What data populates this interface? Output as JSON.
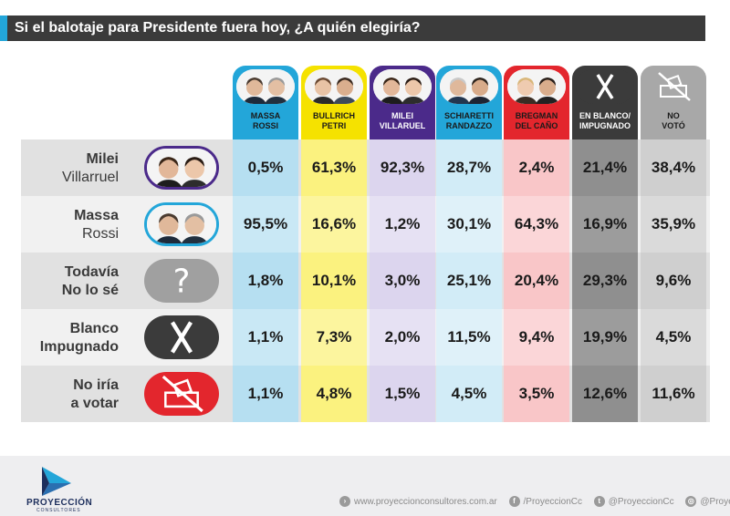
{
  "title": "Si el balotaje para Presidente fuera hoy, ¿A quién elegiría?",
  "colors": {
    "title_bg": "#3b3b3b",
    "accent": "#23a6d9",
    "massa": "#23a6d9",
    "bullrich": "#f5e200",
    "milei": "#4b2a8a",
    "schiaretti": "#23a6d9",
    "bregman": "#e3262d",
    "blanco": "#3b3b3b",
    "no_voto": "#a8a8a8"
  },
  "columns": [
    {
      "line1": "MASSA",
      "line2": "ROSSI",
      "icon": "massa-rossi-photo"
    },
    {
      "line1": "BULLRICH",
      "line2": "PETRI",
      "icon": "bullrich-petri-photo"
    },
    {
      "line1": "MILEI",
      "line2": "VILLARUEL",
      "icon": "milei-villarruel-photo"
    },
    {
      "line1": "SCHIARETTI",
      "line2": "RANDAZZO",
      "icon": "schiaretti-randazzo-photo"
    },
    {
      "line1": "BREGMAN",
      "line2": "DEL CAÑO",
      "icon": "bregman-delcano-photo"
    },
    {
      "line1": "EN BLANCO/",
      "line2": "IMPUGNADO",
      "icon": "x-icon"
    },
    {
      "line1": "NO",
      "line2": "VOTÓ",
      "icon": "no-vote-icon"
    }
  ],
  "rows": [
    {
      "line1": "Milei",
      "line2": "Villarruel",
      "icon": "milei-villarruel-photo",
      "values": [
        "0,5%",
        "61,3%",
        "92,3%",
        "28,7%",
        "2,4%",
        "21,4%",
        "38,4%"
      ]
    },
    {
      "line1": "Massa",
      "line2": "Rossi",
      "icon": "massa-rossi-photo",
      "values": [
        "95,5%",
        "16,6%",
        "1,2%",
        "30,1%",
        "64,3%",
        "16,9%",
        "35,9%"
      ]
    },
    {
      "line1": "Todavía",
      "line2": "No lo sé",
      "icon": "question-icon",
      "values": [
        "1,8%",
        "10,1%",
        "3,0%",
        "25,1%",
        "20,4%",
        "29,3%",
        "9,6%"
      ]
    },
    {
      "line1": "Blanco",
      "line2": "Impugnado",
      "icon": "x-icon",
      "values": [
        "1,1%",
        "7,3%",
        "2,0%",
        "11,5%",
        "9,4%",
        "19,9%",
        "4,5%"
      ]
    },
    {
      "line1": "No iría",
      "line2": "a votar",
      "icon": "no-vote-icon",
      "values": [
        "1,1%",
        "4,8%",
        "1,5%",
        "4,5%",
        "3,5%",
        "12,6%",
        "11,6%"
      ]
    }
  ],
  "footer": {
    "brand": "PROYECCIÓN",
    "brand_sub": "CONSULTORES",
    "website": "www.proyeccionconsultores.com.ar",
    "facebook": "/ProyeccionCc",
    "twitter": "@ProyeccionCc",
    "instagram": "@ProyeccionCc"
  },
  "chart_data": {
    "type": "table",
    "title": "Si el balotaje para Presidente fuera hoy, ¿A quién elegiría?",
    "column_headers": [
      "MASSA ROSSI",
      "BULLRICH PETRI",
      "MILEI VILLARUEL",
      "SCHIARETTI RANDAZZO",
      "BREGMAN DEL CAÑO",
      "EN BLANCO/ IMPUGNADO",
      "NO VOTÓ"
    ],
    "row_headers": [
      "Milei Villarruel",
      "Massa Rossi",
      "Todavía No lo sé",
      "Blanco Impugnado",
      "No iría a votar"
    ],
    "values": [
      [
        0.5,
        61.3,
        92.3,
        28.7,
        2.4,
        21.4,
        38.4
      ],
      [
        95.5,
        16.6,
        1.2,
        30.1,
        64.3,
        16.9,
        35.9
      ],
      [
        1.8,
        10.1,
        3.0,
        25.1,
        20.4,
        29.3,
        9.6
      ],
      [
        1.1,
        7.3,
        2.0,
        11.5,
        9.4,
        19.9,
        4.5
      ],
      [
        1.1,
        4.8,
        1.5,
        4.5,
        3.5,
        12.6,
        11.6
      ]
    ]
  }
}
